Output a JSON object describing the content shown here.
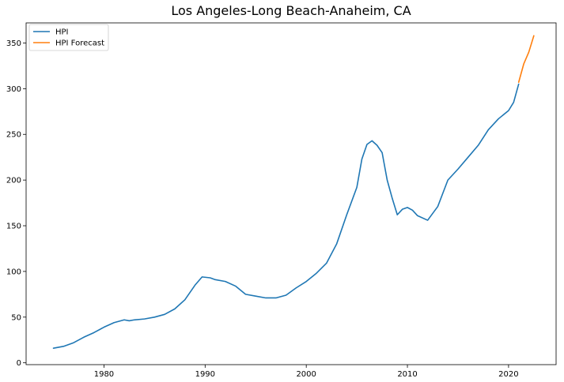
{
  "chart_data": {
    "type": "line",
    "title": "Los Angeles-Long Beach-Anaheim, CA",
    "xlabel": "",
    "ylabel": "",
    "xlim": [
      1972.3,
      2024.7
    ],
    "ylim": [
      -2,
      372
    ],
    "x_ticks": [
      1980,
      1990,
      2000,
      2010,
      2020
    ],
    "y_ticks": [
      0,
      50,
      100,
      150,
      200,
      250,
      300,
      350
    ],
    "grid": false,
    "legend_position": "top-left",
    "series": [
      {
        "name": "HPI",
        "color": "#1f77b4",
        "x": [
          1975.0,
          1976.0,
          1977.0,
          1978.0,
          1979.0,
          1980.0,
          1981.0,
          1982.0,
          1982.5,
          1983.0,
          1984.0,
          1985.0,
          1986.0,
          1987.0,
          1988.0,
          1989.0,
          1989.7,
          1990.5,
          1991.0,
          1992.0,
          1993.0,
          1994.0,
          1995.0,
          1996.0,
          1997.0,
          1998.0,
          1999.0,
          2000.0,
          2001.0,
          2002.0,
          2003.0,
          2004.0,
          2005.0,
          2005.5,
          2006.0,
          2006.5,
          2007.0,
          2007.5,
          2008.0,
          2008.5,
          2009.0,
          2009.5,
          2010.0,
          2010.5,
          2011.0,
          2012.0,
          2013.0,
          2014.0,
          2015.0,
          2016.0,
          2017.0,
          2018.0,
          2019.0,
          2020.0,
          2020.5,
          2021.0
        ],
        "values": [
          16,
          18,
          22,
          28,
          33,
          39,
          44,
          47,
          46,
          47,
          48,
          50,
          53,
          59,
          69,
          85,
          94,
          93,
          91,
          89,
          84,
          75,
          73,
          71,
          71,
          74,
          82,
          89,
          98,
          109,
          130,
          162,
          192,
          223,
          239,
          243,
          238,
          230,
          200,
          180,
          162,
          168,
          170,
          167,
          161,
          156,
          171,
          200,
          212,
          225,
          238,
          255,
          267,
          276,
          285,
          305
        ]
      },
      {
        "name": "HPI Forecast",
        "color": "#ff7f0e",
        "x": [
          2021.0,
          2021.5,
          2022.0,
          2022.5
        ],
        "values": [
          307,
          327,
          340,
          358
        ]
      }
    ]
  }
}
